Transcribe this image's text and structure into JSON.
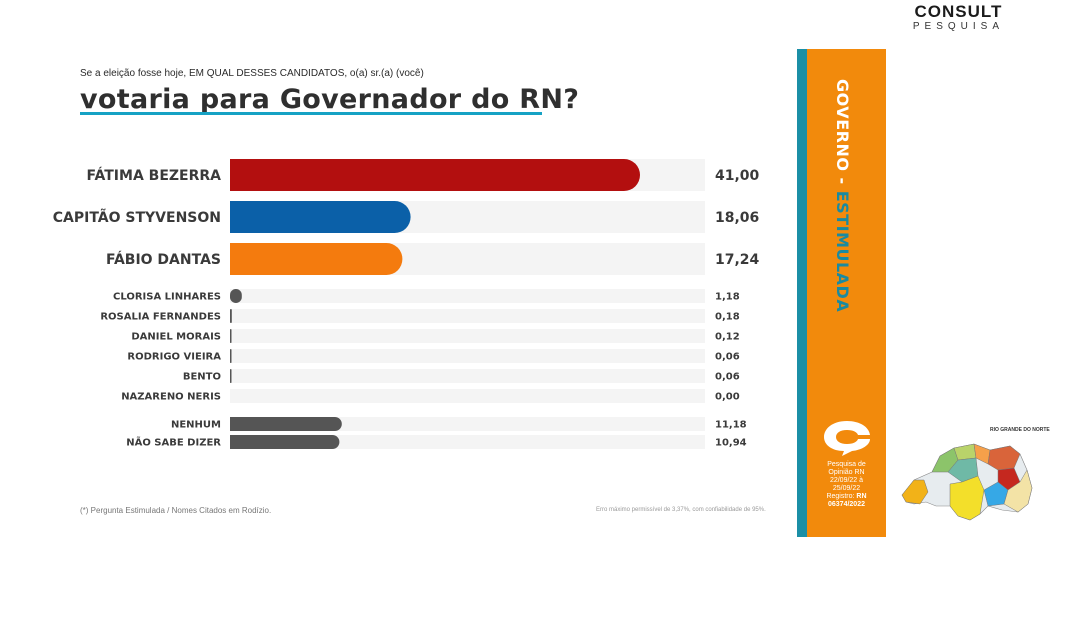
{
  "brand": {
    "name": "CONSULT",
    "sub": "PESQUISA"
  },
  "header": {
    "subtitle": "Se a eleição fosse hoje, EM QUAL DESSES CANDIDATOS, o(a) sr.(a) (você)",
    "title": "votaria para Governador do RN?"
  },
  "chart_data": {
    "type": "bar",
    "orientation": "horizontal",
    "title": "votaria para Governador do RN?",
    "xlim": [
      0,
      50
    ],
    "categories": [
      "FÁTIMA BEZERRA",
      "CAPITÃO STYVENSON",
      "FÁBIO DANTAS",
      "CLORISA LINHARES",
      "ROSALIA FERNANDES",
      "DANIEL MORAIS",
      "RODRIGO VIEIRA",
      "BENTO",
      "NAZARENO NERIS",
      "NENHUM",
      "NÃO SABE DIZER"
    ],
    "values": [
      41.0,
      18.06,
      17.24,
      1.18,
      0.18,
      0.12,
      0.06,
      0.06,
      0.0,
      11.18,
      10.94
    ],
    "value_labels": [
      "41,00",
      "18,06",
      "17,24",
      "1,18",
      "0,18",
      "0,12",
      "0,06",
      "0,06",
      "0,00",
      "11,18",
      "10,94"
    ],
    "colors": [
      "#b30f0f",
      "#0b60a8",
      "#f47b0e",
      "#555555",
      "#555555",
      "#555555",
      "#555555",
      "#555555",
      "#555555",
      "#555555",
      "#555555"
    ]
  },
  "footer": {
    "note": "(*) Pergunta Estimulada / Nomes Citados em Rodízio.",
    "margin": "Erro máximo permissível de 3,37%, com confiabilidade de 95%."
  },
  "side": {
    "word1": "GOVERNO",
    "dash": " - ",
    "word2": "ESTIMULADA",
    "info_lines": [
      "Pesquisa de",
      "Opinião RN",
      "22/09/22 à",
      "25/09/22"
    ],
    "registro_label": "Registro:",
    "registro_uf": "RN",
    "registro_num": "06374/2022"
  },
  "map": {
    "title": "RIO GRANDE DO NORTE"
  },
  "colors": {
    "accent_teal": "#16a2c4",
    "panel_orange": "#f28a0c"
  }
}
